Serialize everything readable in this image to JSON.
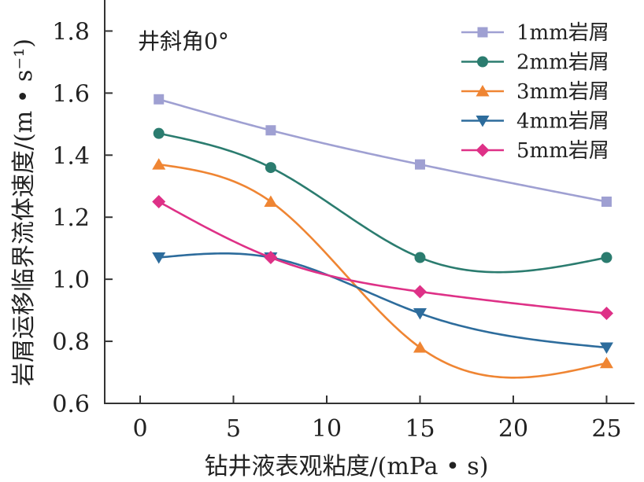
{
  "chart_data": {
    "type": "line",
    "annotation": "井斜角0°",
    "xlabel": "钻井液表观粘度/(mPa • s)",
    "ylabel": "岩屑运移临界流体速度/(m • s⁻¹)",
    "x": [
      1,
      7,
      15,
      25
    ],
    "xlim": [
      -1.9,
      26.5
    ],
    "ylim": [
      0.6,
      1.9
    ],
    "xticks": [
      "0",
      "5",
      "10",
      "15",
      "20",
      "25"
    ],
    "yticks": [
      "0.6",
      "0.8",
      "1.0",
      "1.2",
      "1.4",
      "1.6",
      "1.8"
    ],
    "grid": false,
    "legend_position": "top-right",
    "line_style": "smooth",
    "series": [
      {
        "name": "1mm岩屑",
        "values": [
          1.58,
          1.48,
          1.37,
          1.25
        ],
        "color": "#9fa0d2",
        "marker": "square"
      },
      {
        "name": "2mm岩屑",
        "values": [
          1.47,
          1.36,
          1.07,
          1.07
        ],
        "color": "#2b7c6f",
        "marker": "circle"
      },
      {
        "name": "3mm岩屑",
        "values": [
          1.37,
          1.25,
          0.78,
          0.73
        ],
        "color": "#ef8533",
        "marker": "triangle-up"
      },
      {
        "name": "4mm岩屑",
        "values": [
          1.07,
          1.07,
          0.89,
          0.78
        ],
        "color": "#2d6c9c",
        "marker": "triangle-down"
      },
      {
        "name": "5mm岩屑",
        "values": [
          1.25,
          1.07,
          0.96,
          0.89
        ],
        "color": "#de3187",
        "marker": "diamond"
      }
    ]
  }
}
